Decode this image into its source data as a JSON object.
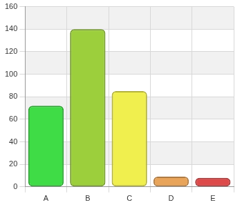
{
  "chart_data": {
    "type": "bar",
    "categories": [
      "A",
      "B",
      "C",
      "D",
      "E"
    ],
    "values": [
      72,
      140,
      85,
      9,
      8
    ],
    "colors": [
      "#3fdc46",
      "#9ccf3c",
      "#f0ef4e",
      "#e8a45a",
      "#dd4a4a"
    ],
    "ylim": [
      0,
      160
    ],
    "yticks": [
      0,
      20,
      40,
      60,
      80,
      100,
      120,
      140,
      160
    ],
    "grid": true
  }
}
